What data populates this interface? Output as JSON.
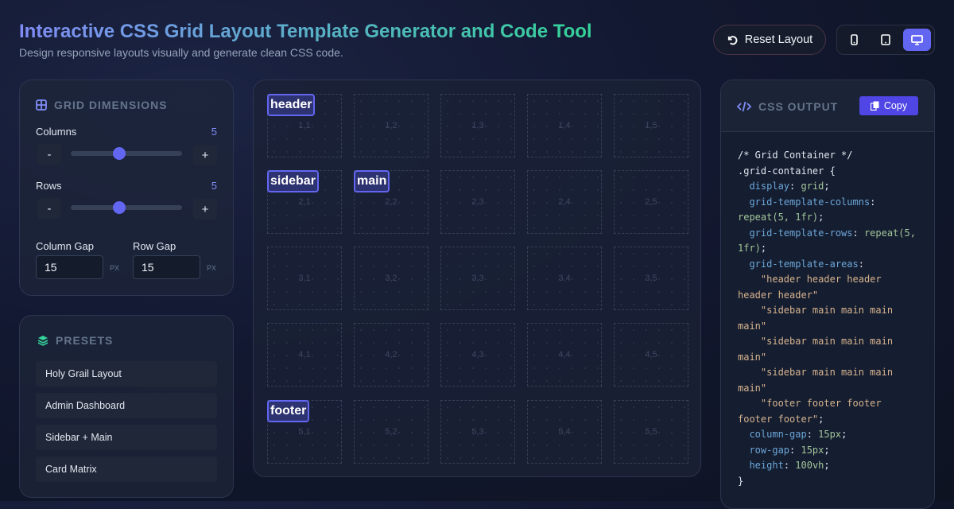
{
  "header": {
    "title": "Interactive CSS Grid Layout Template Generator and Code Tool",
    "subtitle": "Design responsive layouts visually and generate clean CSS code.",
    "reset_label": "Reset Layout",
    "devices": [
      {
        "icon": "mobile-icon",
        "active": false
      },
      {
        "icon": "tablet-icon",
        "active": false
      },
      {
        "icon": "desktop-icon",
        "active": true
      }
    ]
  },
  "dimensions": {
    "title": "GRID DIMENSIONS",
    "columns_label": "Columns",
    "columns_value": "5",
    "rows_label": "Rows",
    "rows_value": "5",
    "slider_fraction": 0.4,
    "minus": "-",
    "plus": "+",
    "column_gap_label": "Column Gap",
    "column_gap_value": "15",
    "row_gap_label": "Row Gap",
    "row_gap_value": "15",
    "unit": "PX"
  },
  "presets": {
    "title": "PRESETS",
    "items": [
      "Holy Grail Layout",
      "Admin Dashboard",
      "Sidebar + Main",
      "Card Matrix"
    ]
  },
  "grid": {
    "rows": [
      [
        "1,1",
        "1,2",
        "1,3",
        "1,4",
        "1,5"
      ],
      [
        "2,1",
        "2,2",
        "2,3",
        "2,4",
        "2,5"
      ],
      [
        "3,1",
        "3,2",
        "3,3",
        "3,4",
        "3,5"
      ],
      [
        "4,1",
        "4,2",
        "4,3",
        "4,4",
        "4,5"
      ],
      [
        "5,1",
        "5,2",
        "5,3",
        "5,4",
        "5,5"
      ]
    ],
    "tags": [
      {
        "label": "header",
        "row": 0,
        "col": 0
      },
      {
        "label": "sidebar",
        "row": 1,
        "col": 0
      },
      {
        "label": "main",
        "row": 1,
        "col": 1
      },
      {
        "label": "footer",
        "row": 4,
        "col": 0
      }
    ]
  },
  "output": {
    "title": "CSS OUTPUT",
    "copy_label": "Copy",
    "code": [
      [
        [
          "c",
          "/* Grid Container */"
        ]
      ],
      [
        [
          "c",
          ".grid-container {"
        ]
      ],
      [
        [
          "c",
          "  "
        ],
        [
          "k",
          "display"
        ],
        [
          "c",
          ": "
        ],
        [
          "v",
          "grid"
        ],
        [
          "c",
          ";"
        ]
      ],
      [
        [
          "c",
          "  "
        ],
        [
          "k",
          "grid-template-columns"
        ],
        [
          "c",
          ":"
        ]
      ],
      [
        [
          "v",
          "repeat(5, 1fr)"
        ],
        [
          "c",
          ";"
        ]
      ],
      [
        [
          "c",
          "  "
        ],
        [
          "k",
          "grid-template-rows"
        ],
        [
          "c",
          ": "
        ],
        [
          "v",
          "repeat(5,"
        ]
      ],
      [
        [
          "v",
          "1fr)"
        ],
        [
          "c",
          ";"
        ]
      ],
      [
        [
          "c",
          "  "
        ],
        [
          "k",
          "grid-template-areas"
        ],
        [
          "c",
          ":"
        ]
      ],
      [
        [
          "s",
          "    \"header header header"
        ]
      ],
      [
        [
          "s",
          "header header\""
        ]
      ],
      [
        [
          "s",
          "    \"sidebar main main main"
        ]
      ],
      [
        [
          "s",
          "main\""
        ]
      ],
      [
        [
          "s",
          "    \"sidebar main main main"
        ]
      ],
      [
        [
          "s",
          "main\""
        ]
      ],
      [
        [
          "s",
          "    \"sidebar main main main"
        ]
      ],
      [
        [
          "s",
          "main\""
        ]
      ],
      [
        [
          "s",
          "    \"footer footer footer"
        ]
      ],
      [
        [
          "s",
          "footer footer\""
        ],
        [
          "c",
          ";"
        ]
      ],
      [
        [
          "c",
          "  "
        ],
        [
          "k",
          "column-gap"
        ],
        [
          "c",
          ": "
        ],
        [
          "v",
          "15px"
        ],
        [
          "c",
          ";"
        ]
      ],
      [
        [
          "c",
          "  "
        ],
        [
          "k",
          "row-gap"
        ],
        [
          "c",
          ": "
        ],
        [
          "v",
          "15px"
        ],
        [
          "c",
          ";"
        ]
      ],
      [
        [
          "c",
          "  "
        ],
        [
          "k",
          "height"
        ],
        [
          "c",
          ": "
        ],
        [
          "v",
          "100vh"
        ],
        [
          "c",
          ";"
        ]
      ],
      [
        [
          "c",
          "}"
        ]
      ]
    ]
  }
}
